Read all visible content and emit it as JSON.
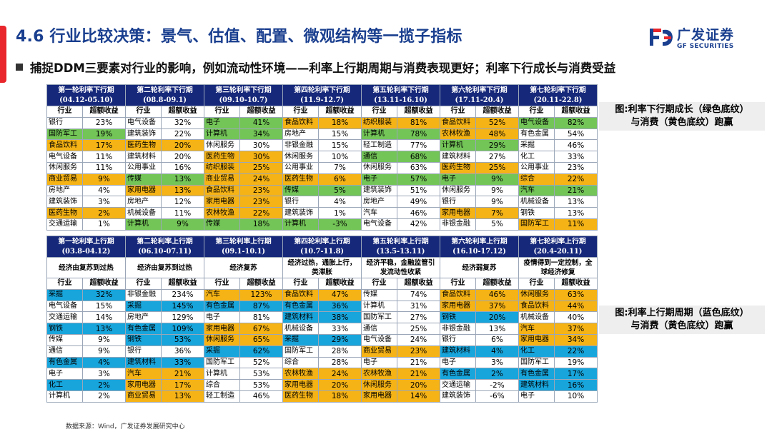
{
  "page": {
    "title": "4.6 行业比较决策：景气、估值、配置、微观结构等一揽子指标",
    "subtitle": "捕捉DDM三要素对行业的影响，例如流动性环境——利率上行期周期与消费表现更好；利率下行成长与消费受益",
    "source": "数据来源：Wind，广发证券发展研究中心"
  },
  "logo": {
    "name_cn": "广发证券",
    "name_en": "GF SECURITIES"
  },
  "colors": {
    "green": "#73c557",
    "yellow": "#f5b315",
    "blue": "#17a5dc",
    "header": "#16287a",
    "title": "#1a3f8f"
  },
  "table_down": {
    "note": [
      "图:利率下行期成长（绿色底纹）",
      "与消费（黄色底纹）跑赢"
    ],
    "headers": [
      [
        "第一轮利率下行期",
        "(04.12-05.10)"
      ],
      [
        "第二轮利率下行期",
        "(08.8-09.1)"
      ],
      [
        "第三轮利率下行期",
        "(09.10-10.7)"
      ],
      [
        "第四轮利率下行期",
        "(11.9-12.7)"
      ],
      [
        "第五轮利率下行期",
        "(13.11-16.10)"
      ],
      [
        "第六轮利率下行期",
        "(17.11-20.4)"
      ],
      [
        "第七轮利率下行期",
        "(20.11-22.8)"
      ]
    ],
    "col_labels": [
      "行业",
      "超额收益"
    ],
    "rows": [
      [
        [
          "银行",
          "23%",
          ""
        ],
        [
          "电气设备",
          "32%",
          ""
        ],
        [
          "电子",
          "41%",
          "g"
        ],
        [
          "食品饮料",
          "18%",
          "y"
        ],
        [
          "纺织服装",
          "81%",
          "y"
        ],
        [
          "食品饮料",
          "52%",
          "y"
        ],
        [
          "电气设备",
          "82%",
          "g"
        ]
      ],
      [
        [
          "国防军工",
          "19%",
          "g"
        ],
        [
          "建筑装饰",
          "22%",
          ""
        ],
        [
          "计算机",
          "34%",
          "g"
        ],
        [
          "房地产",
          "15%",
          ""
        ],
        [
          "计算机",
          "78%",
          "g"
        ],
        [
          "农林牧渔",
          "48%",
          "y"
        ],
        [
          "有色金属",
          "54%",
          ""
        ]
      ],
      [
        [
          "食品饮料",
          "17%",
          "y"
        ],
        [
          "医药生物",
          "20%",
          "y"
        ],
        [
          "休闲服务",
          "30%",
          ""
        ],
        [
          "非银金融",
          "15%",
          ""
        ],
        [
          "轻工制造",
          "77%",
          ""
        ],
        [
          "计算机",
          "29%",
          "g"
        ],
        [
          "采掘",
          "46%",
          ""
        ]
      ],
      [
        [
          "电气设备",
          "11%",
          ""
        ],
        [
          "建筑材料",
          "20%",
          ""
        ],
        [
          "医药生物",
          "30%",
          "y"
        ],
        [
          "休闲服务",
          "10%",
          ""
        ],
        [
          "通信",
          "68%",
          "g"
        ],
        [
          "建筑材料",
          "27%",
          ""
        ],
        [
          "化工",
          "33%",
          ""
        ]
      ],
      [
        [
          "休闲服务",
          "11%",
          ""
        ],
        [
          "公用事业",
          "16%",
          ""
        ],
        [
          "纺织服装",
          "25%",
          "y"
        ],
        [
          "公用事业",
          "7%",
          ""
        ],
        [
          "休闲服务",
          "63%",
          ""
        ],
        [
          "医药生物",
          "25%",
          "y"
        ],
        [
          "公用事业",
          "23%",
          ""
        ]
      ],
      [
        [
          "商业贸易",
          "9%",
          "y"
        ],
        [
          "传媒",
          "13%",
          "g"
        ],
        [
          "商业贸易",
          "24%",
          "y"
        ],
        [
          "医药生物",
          "6%",
          "y"
        ],
        [
          "电子",
          "57%",
          "g"
        ],
        [
          "电子",
          "9%",
          "g"
        ],
        [
          "综合",
          "22%",
          "y"
        ]
      ],
      [
        [
          "房地产",
          "4%",
          ""
        ],
        [
          "家用电器",
          "13%",
          "y"
        ],
        [
          "食品饮料",
          "23%",
          "y"
        ],
        [
          "传媒",
          "5%",
          "g"
        ],
        [
          "建筑装饰",
          "51%",
          ""
        ],
        [
          "休闲服务",
          "9%",
          ""
        ],
        [
          "汽车",
          "21%",
          "g"
        ]
      ],
      [
        [
          "建筑装饰",
          "3%",
          ""
        ],
        [
          "房地产",
          "12%",
          ""
        ],
        [
          "家用电器",
          "23%",
          "y"
        ],
        [
          "银行",
          "4%",
          ""
        ],
        [
          "房地产",
          "49%",
          ""
        ],
        [
          "银行",
          "9%",
          ""
        ],
        [
          "机械设备",
          "13%",
          ""
        ]
      ],
      [
        [
          "医药生物",
          "2%",
          "y"
        ],
        [
          "机械设备",
          "11%",
          ""
        ],
        [
          "农林牧渔",
          "22%",
          "y"
        ],
        [
          "建筑装饰",
          "1%",
          ""
        ],
        [
          "汽车",
          "46%",
          ""
        ],
        [
          "家用电器",
          "7%",
          "y"
        ],
        [
          "钢铁",
          "13%",
          ""
        ]
      ],
      [
        [
          "交通运输",
          "1%",
          ""
        ],
        [
          "计算机",
          "9%",
          "g"
        ],
        [
          "传媒",
          "18%",
          "g"
        ],
        [
          "计算机",
          "-3%",
          "g"
        ],
        [
          "电气设备",
          "42%",
          ""
        ],
        [
          "非银金融",
          "5%",
          ""
        ],
        [
          "国防军工",
          "11%",
          "y"
        ]
      ]
    ]
  },
  "table_up": {
    "note": [
      "图:利率上行期周期（蓝色底纹）",
      "与消费（黄色底纹）跑赢"
    ],
    "headers": [
      [
        "第一轮利率上行期",
        "(03.8-04.12)"
      ],
      [
        "第二轮利率上行期",
        "(06.10-07.11)"
      ],
      [
        "第三轮利率上行期",
        "(09.1-10.1)"
      ],
      [
        "第四轮利率上行期",
        "(10.7-11.8)"
      ],
      [
        "第五轮利率上行期",
        "(13.5-13.11)"
      ],
      [
        "第六轮利率上行期",
        "(16.10-17.12)"
      ],
      [
        "第七轮利率上行期",
        "(20.4-20.11)"
      ]
    ],
    "regimes": [
      "经济由复苏到过热",
      "经济由复苏到过热",
      "经济复苏",
      "经济过热，通胀上行，类滞胀",
      "经济平稳，金融监管引发流动性收紧",
      "经济弱复苏",
      "疫情得到一定控制，全球经济修复"
    ],
    "col_labels": [
      "行业",
      "超额收益"
    ],
    "rows": [
      [
        [
          "采掘",
          "32%",
          "b"
        ],
        [
          "非银金融",
          "234%",
          ""
        ],
        [
          "汽车",
          "123%",
          "y"
        ],
        [
          "食品饮料",
          "47%",
          "y"
        ],
        [
          "传媒",
          "74%",
          ""
        ],
        [
          "食品饮料",
          "46%",
          "y"
        ],
        [
          "休闲服务",
          "63%",
          "y"
        ]
      ],
      [
        [
          "电气设备",
          "15%",
          ""
        ],
        [
          "采掘",
          "145%",
          "b"
        ],
        [
          "有色金属",
          "87%",
          "b"
        ],
        [
          "有色金属",
          "36%",
          "b"
        ],
        [
          "计算机",
          "31%",
          ""
        ],
        [
          "家用电器",
          "37%",
          "y"
        ],
        [
          "食品饮料",
          "44%",
          "y"
        ]
      ],
      [
        [
          "交通运输",
          "14%",
          ""
        ],
        [
          "房地产",
          "129%",
          ""
        ],
        [
          "电子",
          "81%",
          ""
        ],
        [
          "建筑材料",
          "38%",
          "b"
        ],
        [
          "国防军工",
          "27%",
          ""
        ],
        [
          "钢铁",
          "20%",
          "b"
        ],
        [
          "机械设备",
          "40%",
          ""
        ]
      ],
      [
        [
          "钢铁",
          "13%",
          "b"
        ],
        [
          "有色金属",
          "109%",
          "b"
        ],
        [
          "家用电器",
          "67%",
          "y"
        ],
        [
          "机械设备",
          "33%",
          ""
        ],
        [
          "通信",
          "25%",
          ""
        ],
        [
          "非银金融",
          "13%",
          ""
        ],
        [
          "汽车",
          "37%",
          "y"
        ]
      ],
      [
        [
          "传媒",
          "9%",
          ""
        ],
        [
          "钢铁",
          "53%",
          "b"
        ],
        [
          "休闲服务",
          "65%",
          "y"
        ],
        [
          "采掘",
          "29%",
          "b"
        ],
        [
          "电气设备",
          "24%",
          ""
        ],
        [
          "银行",
          "6%",
          ""
        ],
        [
          "家用电器",
          "34%",
          "y"
        ]
      ],
      [
        [
          "通信",
          "9%",
          ""
        ],
        [
          "银行",
          "36%",
          ""
        ],
        [
          "采掘",
          "62%",
          "b"
        ],
        [
          "国防军工",
          "28%",
          ""
        ],
        [
          "商业贸易",
          "23%",
          "y"
        ],
        [
          "建筑材料",
          "4%",
          "b"
        ],
        [
          "化工",
          "22%",
          "b"
        ]
      ],
      [
        [
          "有色金属",
          "4%",
          "b"
        ],
        [
          "建筑材料",
          "33%",
          "b"
        ],
        [
          "国防军工",
          "52%",
          ""
        ],
        [
          "综合",
          "28%",
          ""
        ],
        [
          "电子",
          "21%",
          ""
        ],
        [
          "电子",
          "3%",
          ""
        ],
        [
          "国防军工",
          "19%",
          ""
        ]
      ],
      [
        [
          "电子",
          "3%",
          ""
        ],
        [
          "汽车",
          "21%",
          "y"
        ],
        [
          "计算机",
          "53%",
          ""
        ],
        [
          "农林牧渔",
          "24%",
          "y"
        ],
        [
          "农林牧渔",
          "21%",
          "y"
        ],
        [
          "有色金属",
          "2%",
          "b"
        ],
        [
          "有色金属",
          "17%",
          "b"
        ]
      ],
      [
        [
          "化工",
          "2%",
          "b"
        ],
        [
          "家用电器",
          "17%",
          "y"
        ],
        [
          "综合",
          "53%",
          ""
        ],
        [
          "家用电器",
          "20%",
          "y"
        ],
        [
          "休闲服务",
          "20%",
          "y"
        ],
        [
          "交通运输",
          "-2%",
          ""
        ],
        [
          "建筑材料",
          "16%",
          "b"
        ]
      ],
      [
        [
          "计算机",
          "2%",
          ""
        ],
        [
          "商业贸易",
          "13%",
          "y"
        ],
        [
          "轻工制造",
          "46%",
          ""
        ],
        [
          "医药生物",
          "18%",
          "y"
        ],
        [
          "家用电器",
          "14%",
          "y"
        ],
        [
          "建筑装饰",
          "-6%",
          ""
        ],
        [
          "电子",
          "10%",
          ""
        ]
      ]
    ]
  }
}
